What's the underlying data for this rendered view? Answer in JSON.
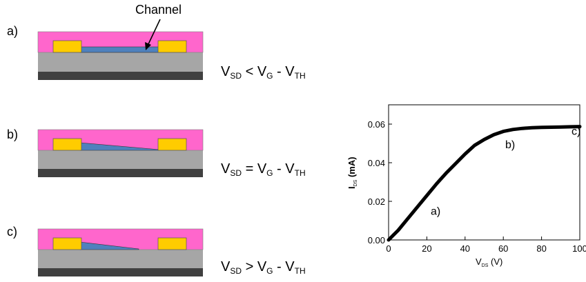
{
  "diagram": {
    "channel_label": "Channel",
    "panels": [
      {
        "label": "a)",
        "condition": {
          "v1": "V",
          "s1": "SD",
          "op": " < ",
          "v2": "V",
          "s2": "G",
          "mid": " - ",
          "v3": "V",
          "s3": "TH"
        }
      },
      {
        "label": "b)",
        "condition": {
          "v1": "V",
          "s1": "SD",
          "op": " = ",
          "v2": "V",
          "s2": "G",
          "mid": " - ",
          "v3": "V",
          "s3": "TH"
        }
      },
      {
        "label": "c)",
        "condition": {
          "v1": "V",
          "s1": "SD",
          "op": " > ",
          "v2": "V",
          "s2": "G",
          "mid": " - ",
          "v3": "V",
          "s3": "TH"
        }
      }
    ],
    "colors": {
      "dielectric": "#ff66cc",
      "electrode": "#ffcc00",
      "channel": "#4f81bd",
      "substrate": "#a6a6a6",
      "gate": "#404040"
    }
  },
  "chart_data": {
    "type": "line",
    "x": [
      0,
      2,
      5,
      10,
      15,
      20,
      25,
      30,
      35,
      40,
      45,
      50,
      55,
      60,
      65,
      70,
      75,
      80,
      85,
      90,
      95,
      100
    ],
    "series": [
      {
        "values": [
          0.0,
          0.002,
          0.005,
          0.011,
          0.017,
          0.023,
          0.029,
          0.0345,
          0.0395,
          0.0445,
          0.049,
          0.052,
          0.0545,
          0.0562,
          0.0572,
          0.0578,
          0.0581,
          0.0583,
          0.0584,
          0.0585,
          0.0586,
          0.0587
        ]
      }
    ],
    "xlabel": {
      "main": "V",
      "sub": "DS",
      "unit": " (V)"
    },
    "ylabel": {
      "main": "I",
      "sub": "DS",
      "unit": " (mA)"
    },
    "xlim": [
      0,
      100
    ],
    "ylim": [
      0,
      0.07
    ],
    "xticks": [
      "0",
      "20",
      "40",
      "60",
      "80",
      "100"
    ],
    "xtick_values": [
      0,
      20,
      40,
      60,
      80,
      100
    ],
    "yticks": [
      "0.00",
      "0.02",
      "0.04",
      "0.06"
    ],
    "ytick_values": [
      0,
      0.02,
      0.04,
      0.06
    ],
    "annotations": [
      {
        "text": "a)",
        "x": 22,
        "y": 0.013
      },
      {
        "text": "b)",
        "x": 61,
        "y": 0.0475
      },
      {
        "text": "c)",
        "x": 129,
        "y": 0.0545
      }
    ]
  }
}
